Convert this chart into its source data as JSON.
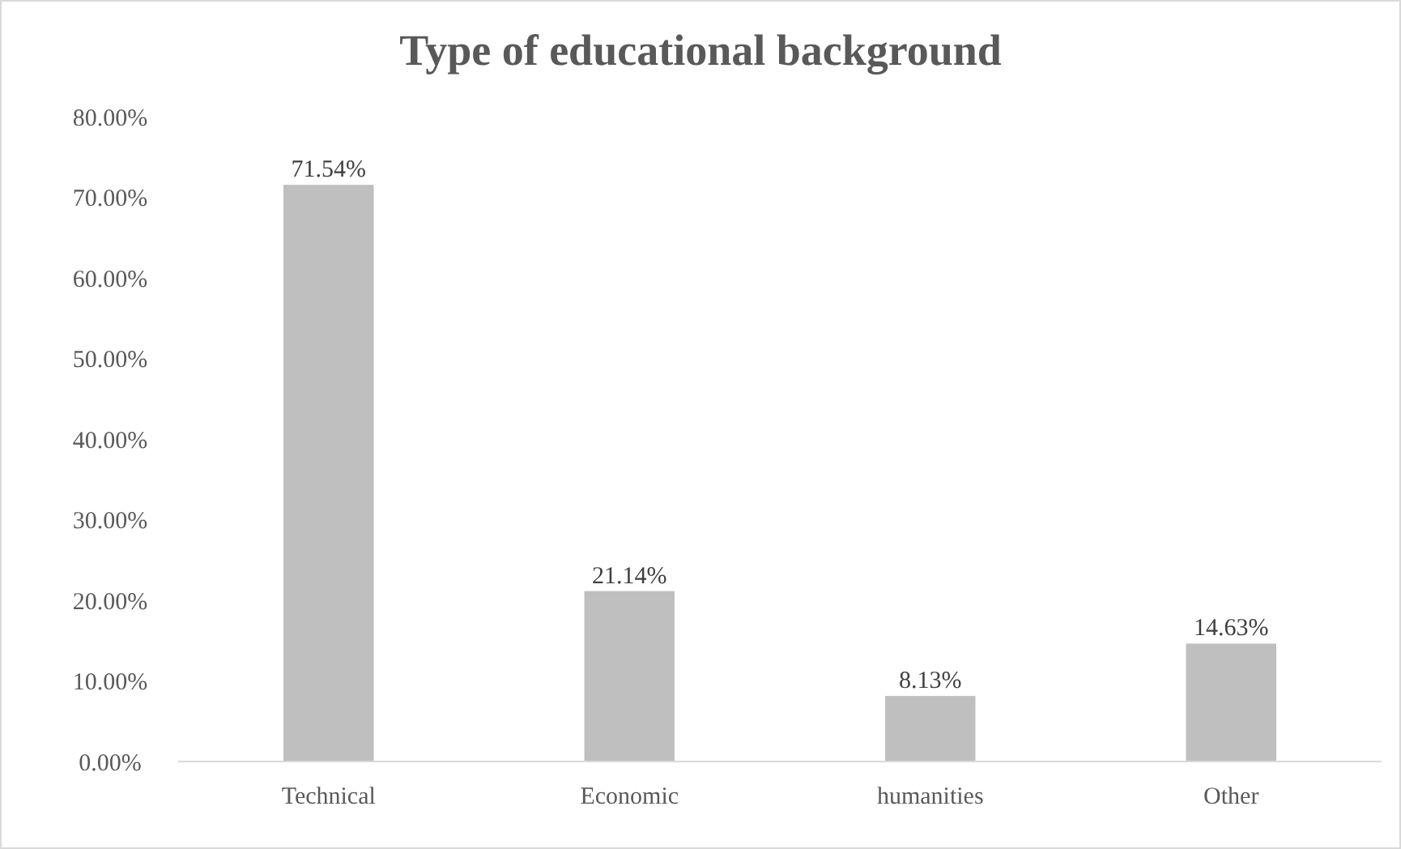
{
  "chart_data": {
    "type": "bar",
    "title": "Type of educational background",
    "categories": [
      "Technical",
      "Economic",
      "humanities",
      "Other"
    ],
    "values": [
      71.54,
      21.14,
      8.13,
      14.63
    ],
    "color": "#bfbfbf",
    "value_labels": [
      "71.54%",
      "21.14%",
      "8.13%",
      "14.63%"
    ],
    "ylim": [
      0,
      80
    ],
    "yticks": [
      {
        "value": 0,
        "label": "0.00%"
      },
      {
        "value": 10,
        "label": "10.00%"
      },
      {
        "value": 20,
        "label": "20.00%"
      },
      {
        "value": 30,
        "label": "30.00%"
      },
      {
        "value": 40,
        "label": "40.00%"
      },
      {
        "value": 50,
        "label": "50.00%"
      },
      {
        "value": 60,
        "label": "60.00%"
      },
      {
        "value": 70,
        "label": "70.00%"
      },
      {
        "value": 80,
        "label": "80.00%"
      }
    ],
    "grid": false
  }
}
